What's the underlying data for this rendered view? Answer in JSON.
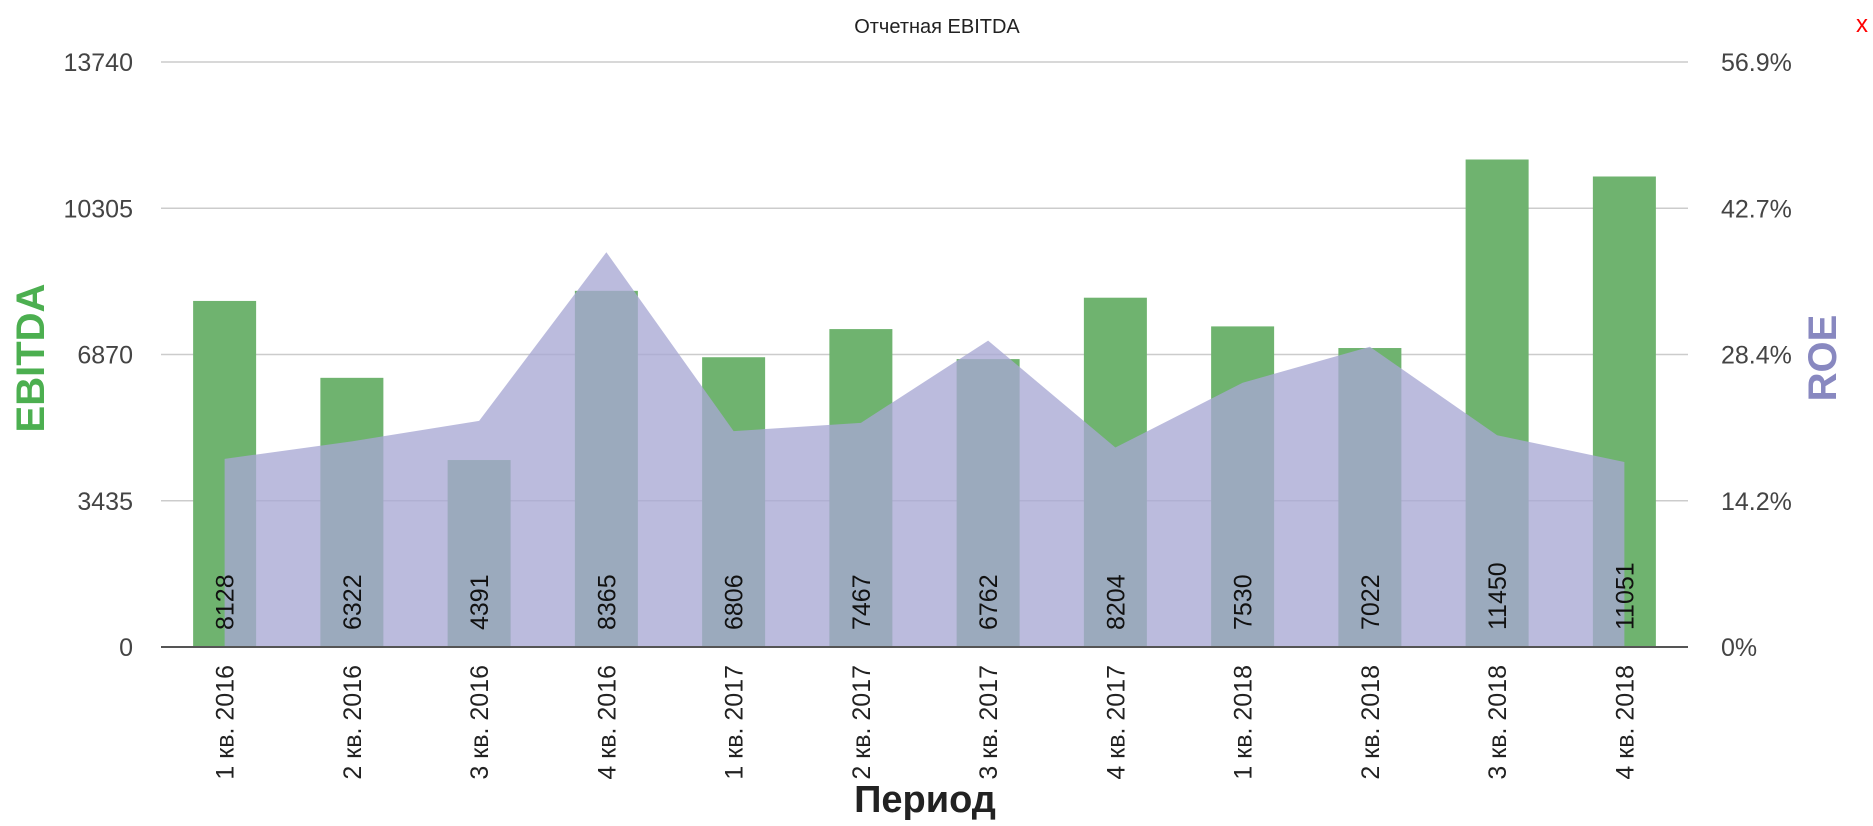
{
  "chart_data": {
    "type": "bar",
    "title": "Отчетная EBITDA",
    "close_label": "x",
    "xlabel": "Период",
    "ylabel_left": "EBITDA",
    "ylabel_right": "ROE",
    "categories": [
      "1 кв. 2016",
      "2 кв. 2016",
      "3 кв. 2016",
      "4 кв. 2016",
      "1 кв. 2017",
      "2 кв. 2017",
      "3 кв. 2017",
      "4 кв. 2017",
      "1 кв. 2018",
      "2 кв. 2018",
      "3 кв. 2018",
      "4 кв. 2018"
    ],
    "series": [
      {
        "type": "bar",
        "axis": "left",
        "values": [
          8128,
          6322,
          4391,
          8365,
          6806,
          7467,
          6762,
          8204,
          7530,
          7022,
          11450,
          11051
        ]
      },
      {
        "type": "area",
        "axis": "right",
        "values": [
          18.3,
          20.0,
          22.0,
          38.4,
          21.0,
          21.8,
          29.8,
          19.4,
          25.7,
          29.2,
          20.6,
          18.0
        ]
      }
    ],
    "ylim_left": [
      0,
      13740
    ],
    "yticks_left": [
      "0",
      "3435",
      "6870",
      "10305",
      "13740"
    ],
    "ylim_right": [
      0,
      56.9
    ],
    "yticks_right": [
      "0%",
      "14.2%",
      "28.4%",
      "42.7%",
      "56.9%"
    ],
    "grid": true,
    "colors": {
      "bar": "#6fb36f",
      "area": "#a8a8d4",
      "left_title": "#4caf50",
      "right_title": "#8888c0",
      "grid": "#cccccc",
      "close": "#ff0000"
    }
  }
}
